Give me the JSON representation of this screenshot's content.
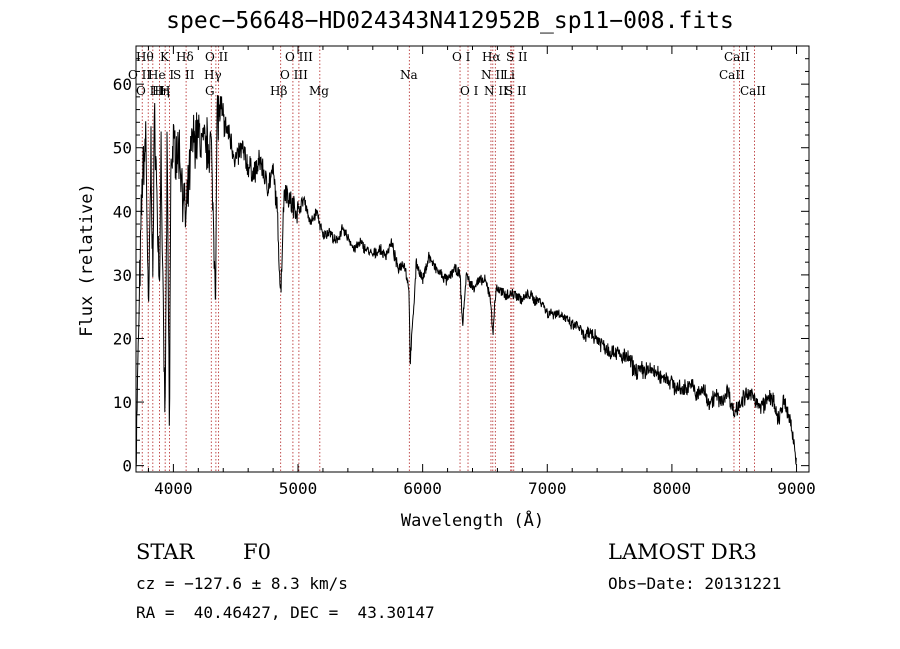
{
  "chart_data": {
    "type": "line",
    "title": "spec−56648−HD024343N412952B_sp11−008.fits",
    "xlabel": "Wavelength (Å)",
    "ylabel": "Flux (relative)",
    "xlim": [
      3700,
      9100
    ],
    "ylim": [
      -1,
      66
    ],
    "xticks": [
      4000,
      5000,
      6000,
      7000,
      8000,
      9000
    ],
    "yticks": [
      0,
      10,
      20,
      30,
      40,
      50,
      60
    ],
    "grid": false,
    "series": [
      {
        "name": "spectrum",
        "x": [
          3700,
          3720,
          3750,
          3780,
          3800,
          3820,
          3835,
          3850,
          3870,
          3889,
          3900,
          3920,
          3934,
          3950,
          3968,
          3980,
          4000,
          4050,
          4100,
          4150,
          4200,
          4250,
          4300,
          4340,
          4350,
          4400,
          4450,
          4500,
          4550,
          4600,
          4650,
          4700,
          4750,
          4800,
          4830,
          4861,
          4890,
          4950,
          5000,
          5050,
          5100,
          5150,
          5200,
          5250,
          5300,
          5350,
          5400,
          5450,
          5500,
          5550,
          5600,
          5650,
          5700,
          5750,
          5800,
          5850,
          5890,
          5900,
          5950,
          6000,
          6050,
          6100,
          6150,
          6200,
          6250,
          6300,
          6320,
          6350,
          6400,
          6450,
          6500,
          6540,
          6563,
          6590,
          6650,
          6700,
          6750,
          6800,
          6850,
          6900,
          6950,
          7000,
          7050,
          7100,
          7150,
          7200,
          7250,
          7300,
          7350,
          7400,
          7450,
          7500,
          7550,
          7600,
          7650,
          7700,
          7750,
          7800,
          7850,
          7900,
          7950,
          8000,
          8050,
          8100,
          8150,
          8200,
          8250,
          8300,
          8350,
          8400,
          8450,
          8498,
          8542,
          8600,
          8662,
          8700,
          8750,
          8800,
          8850,
          8900,
          8950,
          9000
        ],
        "y": [
          0,
          20,
          45,
          52,
          22,
          50,
          30,
          56,
          40,
          28,
          52,
          20,
          8,
          50,
          5,
          48,
          50,
          49,
          38,
          51,
          52,
          50,
          51,
          28,
          56,
          54,
          52,
          48,
          50,
          47,
          46,
          48,
          44,
          46,
          41,
          27,
          44,
          41,
          40,
          42,
          38,
          40,
          36,
          37,
          35,
          37,
          36,
          34,
          35,
          34,
          33,
          34,
          33,
          35,
          31,
          32,
          28,
          16,
          32,
          29,
          33,
          31,
          30,
          29,
          31,
          30,
          22,
          30,
          28,
          29,
          29,
          27,
          21,
          28,
          27,
          27,
          27,
          26,
          27,
          26,
          26,
          24,
          24,
          24,
          23,
          22,
          22,
          20,
          21,
          20,
          19,
          18,
          18,
          17,
          17,
          15,
          15,
          15,
          15,
          14,
          14,
          13,
          12,
          12,
          13,
          11,
          12,
          10,
          11,
          10,
          12,
          8,
          10,
          11,
          11,
          9,
          10,
          11,
          7,
          10,
          7,
          1
        ]
      }
    ],
    "lines": [
      {
        "wl": 3750,
        "labels": [
          "O II",
          "O III"
        ]
      },
      {
        "wl": 3798,
        "labels": [
          "Hθ",
          "He I"
        ]
      },
      {
        "wl": 3835,
        "labels": [
          "Hη"
        ]
      },
      {
        "wl": 3889,
        "labels": [
          "He I"
        ]
      },
      {
        "wl": 3934,
        "labels": [
          "K",
          "S II"
        ]
      },
      {
        "wl": 3968,
        "labels": [
          "H"
        ]
      },
      {
        "wl": 4102,
        "labels": [
          "Hδ"
        ]
      },
      {
        "wl": 4304,
        "labels": [
          "G"
        ]
      },
      {
        "wl": 4341,
        "labels": [
          "Hγ"
        ]
      },
      {
        "wl": 4363,
        "labels": [
          "O III"
        ]
      },
      {
        "wl": 4861,
        "labels": [
          "Hβ"
        ]
      },
      {
        "wl": 4959,
        "labels": [
          "O III"
        ]
      },
      {
        "wl": 5007,
        "labels": [
          "O III"
        ]
      },
      {
        "wl": 5175,
        "labels": [
          "Mg"
        ]
      },
      {
        "wl": 5893,
        "labels": [
          "Na"
        ]
      },
      {
        "wl": 6300,
        "labels": [
          "O I"
        ]
      },
      {
        "wl": 6364,
        "labels": [
          "O I"
        ]
      },
      {
        "wl": 6548,
        "labels": [
          "N II"
        ]
      },
      {
        "wl": 6563,
        "labels": [
          "Hα"
        ]
      },
      {
        "wl": 6583,
        "labels": [
          "N II"
        ]
      },
      {
        "wl": 6707,
        "labels": [
          "Li"
        ]
      },
      {
        "wl": 6716,
        "labels": [
          "S II"
        ]
      },
      {
        "wl": 6731,
        "labels": [
          "S II"
        ]
      },
      {
        "wl": 8498,
        "labels": [
          "CaII"
        ]
      },
      {
        "wl": 8542,
        "labels": [
          "CaII"
        ]
      },
      {
        "wl": 8662,
        "labels": [
          "CaII"
        ]
      }
    ],
    "line_label_rows": [
      [
        "Hθ",
        "K",
        "Hδ",
        "O II",
        "O III",
        "O I",
        "Hα",
        "S II",
        "CaII"
      ],
      [
        "O II",
        "He I",
        "S II",
        "Hγ",
        "O III",
        "Na",
        "N II",
        "Li",
        "CaII"
      ],
      [
        "O III",
        "Hη",
        "H",
        "G",
        "Hβ",
        "Mg",
        "O I",
        "N II",
        "S II",
        "CaII"
      ]
    ]
  },
  "info": {
    "object_class": "STAR",
    "subclass": "F0",
    "survey": "LAMOST DR3",
    "cz": "cz = −127.6 ± 8.3 km/s",
    "obs_date": "Obs−Date: 20131221",
    "radec": "RA =  40.46427, DEC =  43.30147"
  },
  "colors": {
    "spectrum": "#000000",
    "line_markers": "#b22222",
    "axes": "#000000"
  }
}
